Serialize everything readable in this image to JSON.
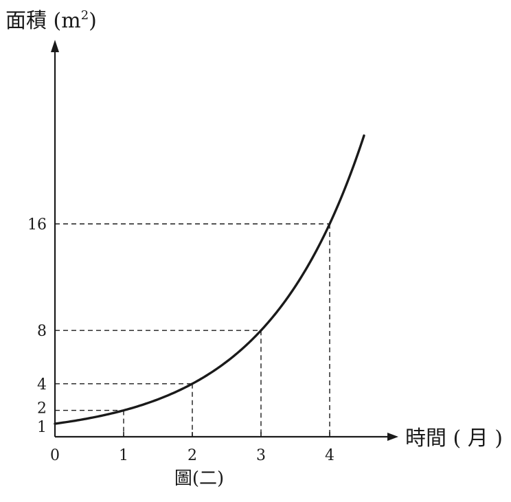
{
  "chart_data": {
    "type": "line",
    "ylabel": "面積 (m",
    "ylabel_sup": "2",
    "ylabel_close": ")",
    "xlabel": "時間 ( 月 )",
    "caption": "圖(二)",
    "xlim": [
      0,
      4.5
    ],
    "y_scale": "exponential",
    "x_ticks": [
      "0",
      "1",
      "2",
      "3",
      "4"
    ],
    "y_ticks": [
      "1",
      "2",
      "4",
      "8",
      "16"
    ],
    "series": [
      {
        "x": [
          0,
          1,
          2,
          3,
          4,
          4.5
        ],
        "y": [
          1,
          2,
          4,
          8,
          16,
          22.6
        ],
        "function": "2^x"
      }
    ],
    "marked_points": [
      {
        "x": 1,
        "y": 2
      },
      {
        "x": 2,
        "y": 4
      },
      {
        "x": 3,
        "y": 8
      },
      {
        "x": 4,
        "y": 16
      }
    ],
    "grid": false,
    "legend": "none"
  }
}
